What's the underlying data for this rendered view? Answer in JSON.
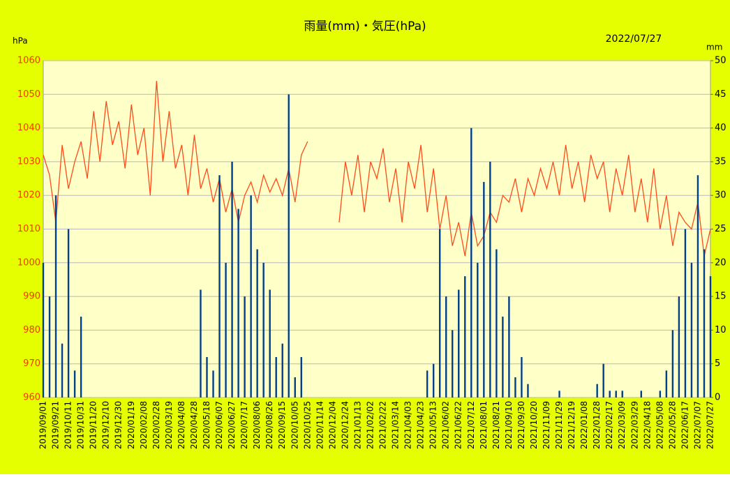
{
  "chart_data": {
    "type": "combo",
    "title": "雨量(mm)・気圧(hPa)",
    "date": "2022/07/27",
    "y_label": "hPa",
    "y2_label": "mm",
    "categories": [
      "2019/09/01",
      null,
      "2019/09/21",
      null,
      "2019/10/11",
      null,
      "2019/10/31",
      null,
      "2019/11/20",
      null,
      "2019/12/10",
      null,
      "2019/12/30",
      null,
      "2020/01/19",
      null,
      "2020/02/08",
      null,
      "2020/02/28",
      null,
      "2020/03/19",
      null,
      "2020/04/08",
      null,
      "2020/04/28",
      null,
      "2020/05/18",
      null,
      "2020/06/07",
      null,
      "2020/06/27",
      null,
      "2020/07/17",
      null,
      "2020/08/06",
      null,
      "2020/08/26",
      null,
      "2020/09/15",
      null,
      "2020/10/05",
      null,
      "2020/10/25",
      null,
      "2020/11/14",
      null,
      "2020/12/04",
      null,
      "2020/12/24",
      null,
      "2021/01/13",
      null,
      "2021/02/02",
      null,
      "2021/02/22",
      null,
      "2021/03/14",
      null,
      "2021/04/03",
      null,
      "2021/04/23",
      null,
      "2021/05/13",
      null,
      "2021/06/02",
      null,
      "2021/06/22",
      null,
      "2021/07/12",
      null,
      "2021/08/01",
      null,
      "2021/08/21",
      null,
      "2021/09/10",
      null,
      "2021/09/30",
      null,
      "2021/10/20",
      null,
      "2021/11/09",
      null,
      "2021/11/29",
      null,
      "2021/12/19",
      null,
      "2022/01/08",
      null,
      "2022/01/28",
      null,
      "2022/02/17",
      null,
      "2022/03/09",
      null,
      "2022/03/29",
      null,
      "2022/04/18",
      null,
      "2022/05/08",
      null,
      "2022/05/28",
      null,
      "2022/06/17",
      null,
      "2022/07/07",
      null,
      "2022/07/27"
    ],
    "series": [
      {
        "name": "気圧",
        "type": "line",
        "axis": "y",
        "color": "#ff4a1a",
        "values": [
          1032,
          1026,
          1012,
          1035,
          1022,
          1030,
          1036,
          1025,
          1045,
          1030,
          1048,
          1035,
          1042,
          1028,
          1047,
          1032,
          1040,
          1020,
          1054,
          1030,
          1045,
          1028,
          1035,
          1020,
          1038,
          1022,
          1028,
          1018,
          1025,
          1015,
          1022,
          1012,
          1020,
          1024,
          1018,
          1026,
          1021,
          1025,
          1020,
          1028,
          1018,
          1032,
          1036,
          null,
          null,
          null,
          null,
          1012,
          1030,
          1020,
          1032,
          1015,
          1030,
          1025,
          1034,
          1018,
          1028,
          1012,
          1030,
          1022,
          1035,
          1015,
          1028,
          1010,
          1020,
          1005,
          1012,
          1002,
          1015,
          1005,
          1008,
          1015,
          1012,
          1020,
          1018,
          1025,
          1015,
          1025,
          1020,
          1028,
          1022,
          1030,
          1020,
          1035,
          1022,
          1030,
          1018,
          1032,
          1025,
          1030,
          1015,
          1028,
          1020,
          1032,
          1015,
          1025,
          1012,
          1028,
          1010,
          1020,
          1005,
          1015,
          1012,
          1010,
          1018,
          1002,
          1010
        ]
      },
      {
        "name": "雨量",
        "type": "bar",
        "axis": "y2",
        "color": "#003f8a",
        "values": [
          20,
          15,
          30,
          8,
          25,
          4,
          12,
          0,
          0,
          0,
          0,
          0,
          0,
          0,
          0,
          0,
          0,
          0,
          0,
          0,
          0,
          0,
          0,
          0,
          0,
          16,
          6,
          4,
          33,
          20,
          35,
          28,
          15,
          30,
          22,
          20,
          16,
          6,
          8,
          45,
          3,
          6,
          0,
          null,
          null,
          null,
          null,
          0,
          0,
          0,
          0,
          0,
          0,
          0,
          0,
          0,
          0,
          0,
          0,
          0,
          0,
          4,
          5,
          25,
          15,
          10,
          16,
          18,
          40,
          20,
          32,
          35,
          22,
          12,
          15,
          3,
          6,
          2,
          0,
          0,
          0,
          0,
          1,
          0,
          0,
          0,
          0,
          0,
          2,
          5,
          1,
          1,
          1,
          0,
          0,
          1,
          0,
          0,
          1,
          4,
          10,
          15,
          25,
          20,
          33,
          22,
          18
        ]
      }
    ],
    "ylim": [
      960,
      1060
    ],
    "yticks": [
      960,
      970,
      980,
      990,
      1000,
      1010,
      1020,
      1030,
      1040,
      1050,
      1060
    ],
    "y2lim": [
      0,
      50
    ],
    "y2ticks": [
      0,
      5,
      10,
      15,
      20,
      25,
      30,
      35,
      40,
      45,
      50
    ],
    "grid": true,
    "y_tick_color": "#ff3300",
    "y2_tick_color": "#000000",
    "background": "#e6ff00",
    "plot_background": "#ffffc8"
  }
}
